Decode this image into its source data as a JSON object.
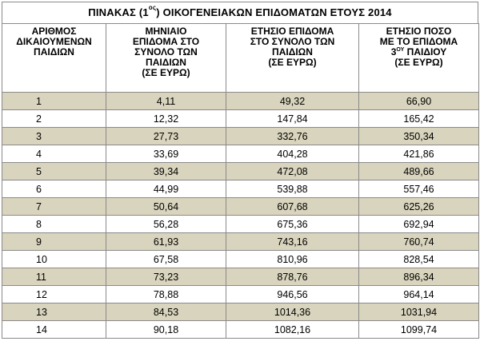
{
  "title": {
    "prefix": "ΠΙΝΑΚΑΣ (1",
    "sup": "ος",
    "suffix": ") ΟΙΚΟΓΕΝΕΙΑΚΩΝ ΕΠΙΔΟΜΑΤΩΝ ΕΤΟΥΣ 2014"
  },
  "headers": {
    "col1": [
      "ΑΡΙΘΜΟΣ",
      "ΔΙΚΑΙΟΥΜΕΝΩΝ",
      "ΠΑΙΔΙΩΝ"
    ],
    "col2": [
      "ΜΗΝΙΑΙΟ",
      "ΕΠΙΔΟΜΑ ΣΤΟ",
      "ΣΥΝΟΛΟ ΤΩΝ",
      "ΠΑΙΔΙΩΝ",
      "(ΣΕ ΕΥΡΩ)"
    ],
    "col3": [
      "ΕΤΗΣΙΟ ΕΠΙΔΟΜΑ",
      "ΣΤΟ ΣΥΝΟΛΟ ΤΩΝ",
      "ΠΑΙΔΙΩΝ",
      "(ΣΕ ΕΥΡΩ)"
    ],
    "col4": {
      "line1": "ΕΤΗΣΙΟ ΠΟΣΟ",
      "line2": "ΜΕ ΤΟ ΕΠΙΔΟΜΑ",
      "line3_prefix": "3",
      "line3_sup": "ΟΥ",
      "line3_suffix": " ΠΑΙΔΙΟΥ",
      "line4": "(ΣΕ ΕΥΡΩ)"
    }
  },
  "rows": [
    [
      "1",
      "4,11",
      "49,32",
      "66,90"
    ],
    [
      "2",
      "12,32",
      "147,84",
      "165,42"
    ],
    [
      "3",
      "27,73",
      "332,76",
      "350,34"
    ],
    [
      "4",
      "33,69",
      "404,28",
      "421,86"
    ],
    [
      "5",
      "39,34",
      "472,08",
      "489,66"
    ],
    [
      "6",
      "44,99",
      "539,88",
      "557,46"
    ],
    [
      "7",
      "50,64",
      "607,68",
      "625,26"
    ],
    [
      "8",
      "56,28",
      "675,36",
      "692,94"
    ],
    [
      "9",
      "61,93",
      "743,16",
      "760,74"
    ],
    [
      "10",
      "67,58",
      "810,96",
      "828,54"
    ],
    [
      "11",
      "73,23",
      "878,76",
      "896,34"
    ],
    [
      "12",
      "78,88",
      "946,56",
      "964,14"
    ],
    [
      "13",
      "84,53",
      "1014,36",
      "1031,94"
    ],
    [
      "14",
      "90,18",
      "1082,16",
      "1099,74"
    ]
  ],
  "colors": {
    "shade": "#d9d4bd",
    "border": "#8a8a8a"
  }
}
